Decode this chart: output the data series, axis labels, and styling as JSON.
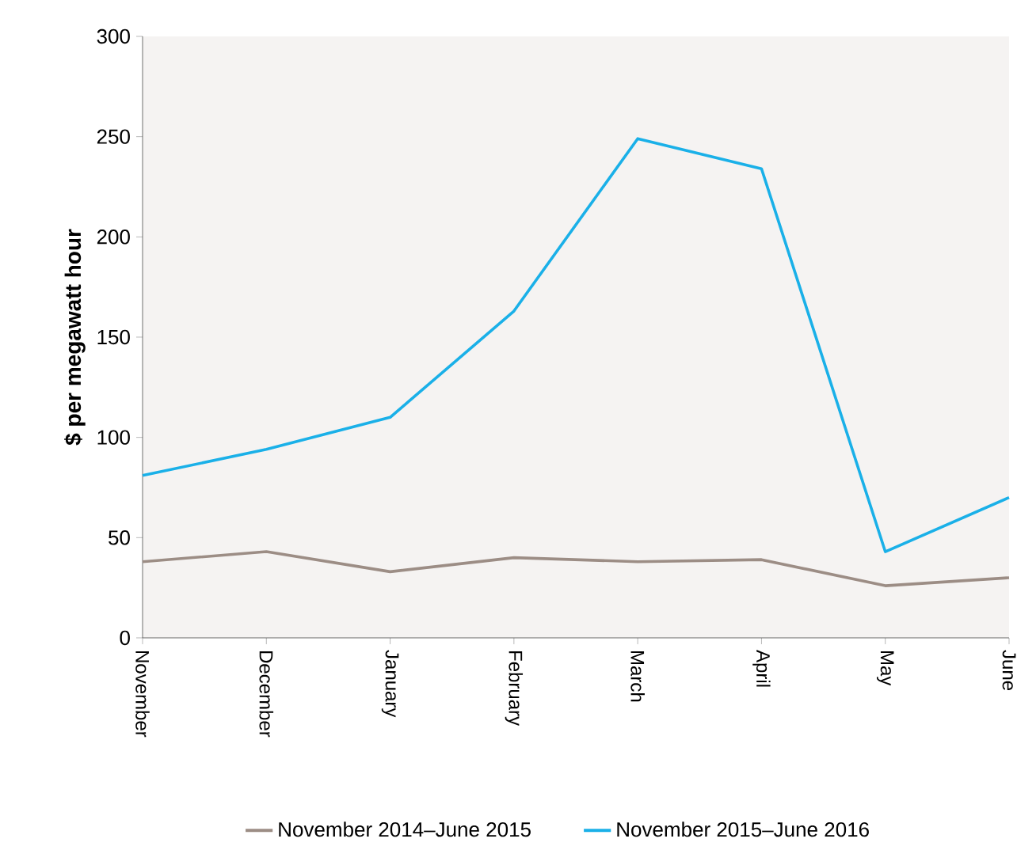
{
  "chart_data": {
    "type": "line",
    "ylabel": "$ per megawatt hour",
    "categories": [
      "November",
      "December",
      "January",
      "February",
      "March",
      "April",
      "May",
      "June"
    ],
    "series": [
      {
        "name": "November 2014–June 2015",
        "color": "#9c8d85",
        "values": [
          38,
          43,
          33,
          40,
          38,
          39,
          26,
          30
        ]
      },
      {
        "name": "November 2015–June 2016",
        "color": "#1ab0e8",
        "values": [
          81,
          94,
          110,
          163,
          249,
          234,
          43,
          70
        ]
      }
    ],
    "ylim": [
      0,
      300
    ],
    "yticks": [
      0,
      50,
      100,
      150,
      200,
      250,
      300
    ],
    "grid": false,
    "legend": "bottom",
    "marker": "none",
    "line_style": "solid"
  }
}
